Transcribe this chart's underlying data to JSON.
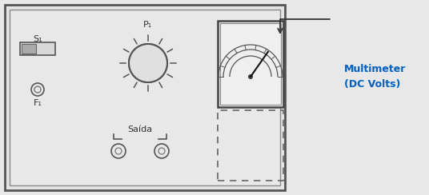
{
  "bg_color": "#e8e8e8",
  "panel_bg": "#ebebeb",
  "panel_border": "#555555",
  "multimeter_label_color": "#0060c0",
  "multimeter_label": "Multimeter\n(DC Volts)",
  "s1_label": "S₁",
  "p1_label": "P₁",
  "f1_label": "F₁",
  "saida_label": "Saída",
  "figsize": [
    5.36,
    2.44
  ],
  "dpi": 100
}
